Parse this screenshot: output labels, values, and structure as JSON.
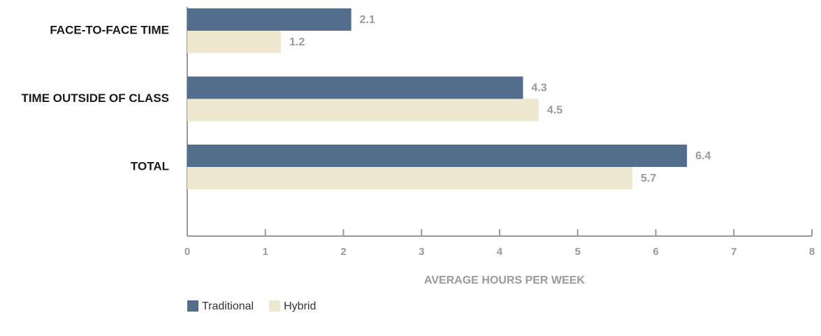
{
  "chart_data": {
    "type": "barh",
    "categories": [
      "FACE-TO-FACE TIME",
      "TIME OUTSIDE OF CLASS",
      "TOTAL"
    ],
    "series": [
      {
        "name": "Traditional",
        "color": "#536d8c",
        "values": [
          2.1,
          4.3,
          6.4
        ]
      },
      {
        "name": "Hybrid",
        "color": "#efe8d0",
        "values": [
          1.2,
          4.5,
          5.7
        ]
      }
    ],
    "xlabel": "AVERAGE HOURS PER WEEK",
    "xlim": [
      0,
      8
    ],
    "xticks": [
      0,
      1,
      2,
      3,
      4,
      5,
      6,
      7,
      8
    ],
    "legend": "bottom-left"
  }
}
